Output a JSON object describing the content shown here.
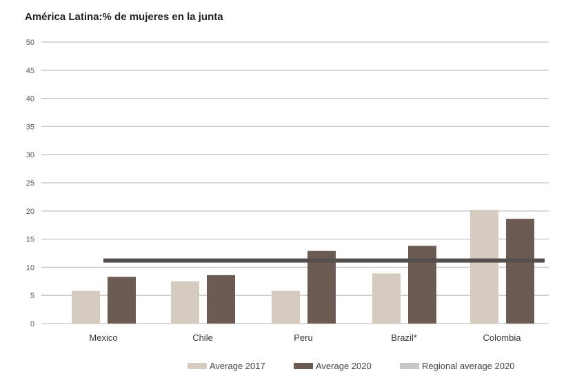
{
  "chart_data": {
    "type": "bar",
    "title": "América Latina:% de mujeres en la junta",
    "categories": [
      "Mexico",
      "Chile",
      "Peru",
      "Brazil*",
      "Colombia"
    ],
    "series": [
      {
        "name": "Average 2017",
        "color": "#d5cbbf",
        "values": [
          5.8,
          7.5,
          5.8,
          8.9,
          20.2
        ]
      },
      {
        "name": "Average 2020",
        "color": "#6b5b52",
        "values": [
          8.3,
          8.6,
          12.9,
          13.8,
          18.6
        ]
      }
    ],
    "reference_line": {
      "name": "Regional average 2020",
      "value": 11.2,
      "color": "#55504d",
      "legend_color": "#c8c8c8"
    },
    "ylim": [
      0,
      50
    ],
    "yticks": [
      0,
      5,
      10,
      15,
      20,
      25,
      30,
      35,
      40,
      45,
      50
    ],
    "grid": true,
    "legend": "bottom-right"
  }
}
